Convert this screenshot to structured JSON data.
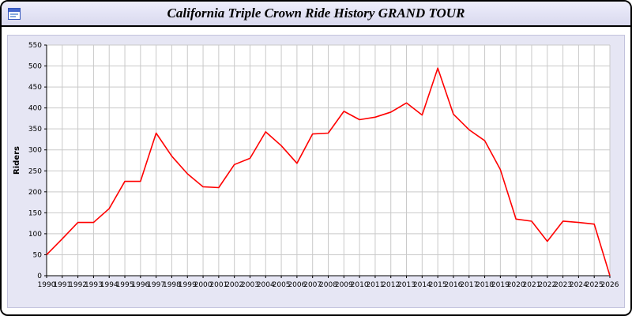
{
  "window": {
    "title": "California Triple Crown Ride History GRAND TOUR"
  },
  "chart_data": {
    "type": "line",
    "title": "California Triple Crown Ride History GRAND TOUR",
    "xlabel": "",
    "ylabel": "Riders",
    "ylim": [
      0,
      550
    ],
    "ytick_step": 50,
    "grid": true,
    "legend_position": "none",
    "plot_bg": "#ffffff",
    "panel_bg": "#e6e6f4",
    "grid_color": "#c9c9c9",
    "x": [
      1990,
      1991,
      1992,
      1993,
      1994,
      1995,
      1996,
      1997,
      1998,
      1999,
      2000,
      2001,
      2002,
      2003,
      2004,
      2005,
      2006,
      2007,
      2008,
      2009,
      2010,
      2011,
      2012,
      2013,
      2014,
      2015,
      2016,
      2017,
      2018,
      2019,
      2020,
      2021,
      2022,
      2023,
      2024,
      2025,
      2026
    ],
    "series": [
      {
        "name": "Riders",
        "color": "#ff0000",
        "values": [
          50,
          88,
          127,
          127,
          160,
          225,
          225,
          340,
          285,
          243,
          212,
          210,
          265,
          280,
          343,
          310,
          268,
          338,
          340,
          392,
          372,
          378,
          390,
          412,
          383,
          495,
          385,
          348,
          322,
          253,
          135,
          130,
          82,
          130,
          127,
          123,
          0
        ]
      }
    ]
  }
}
